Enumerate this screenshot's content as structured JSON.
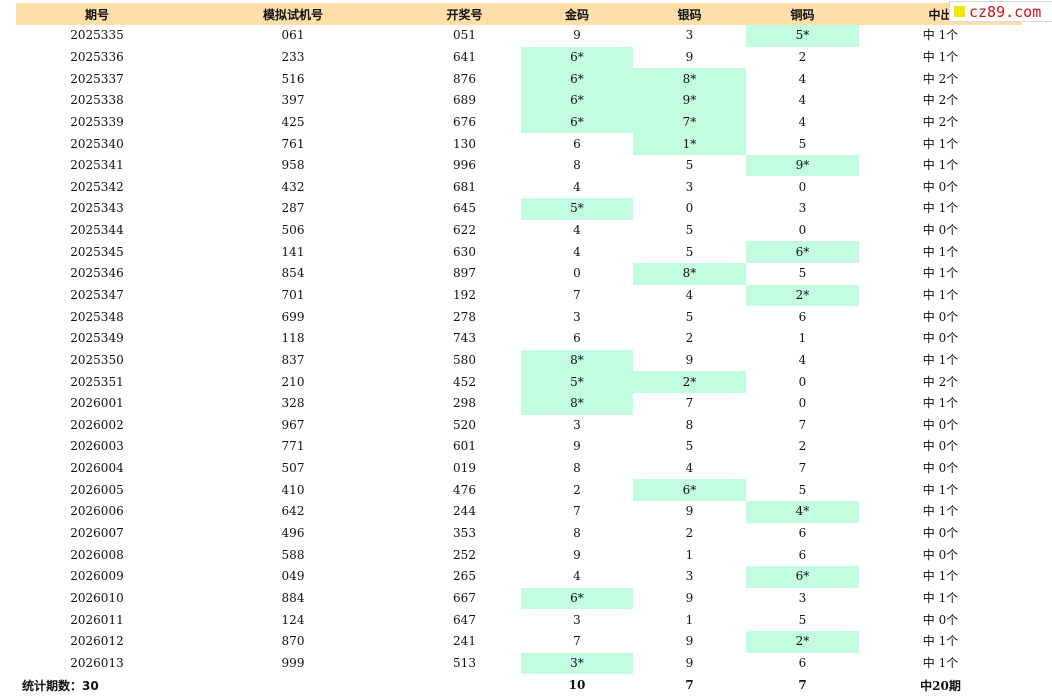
{
  "header": [
    "期号",
    "模拟试机号",
    "开奖号",
    "金码",
    "银码",
    "铜码",
    "中出"
  ],
  "logo": {
    "text": "cz89.com",
    "color": "#d0101a",
    "square_color": "#f4e800"
  },
  "colors": {
    "header_bg": "#fde0a9",
    "hit_bg": "#c2fde2"
  },
  "rows": [
    {
      "period": "2025335",
      "sim": "061",
      "draw": "051",
      "gold": "9",
      "silver": "3",
      "bronze": "5*",
      "hit": "中 1个",
      "hit_cols": [
        "bronze"
      ]
    },
    {
      "period": "2025336",
      "sim": "233",
      "draw": "641",
      "gold": "6*",
      "silver": "9",
      "bronze": "2",
      "hit": "中 1个",
      "hit_cols": [
        "gold"
      ]
    },
    {
      "period": "2025337",
      "sim": "516",
      "draw": "876",
      "gold": "6*",
      "silver": "8*",
      "bronze": "4",
      "hit": "中 2个",
      "hit_cols": [
        "gold",
        "silver"
      ]
    },
    {
      "period": "2025338",
      "sim": "397",
      "draw": "689",
      "gold": "6*",
      "silver": "9*",
      "bronze": "4",
      "hit": "中 2个",
      "hit_cols": [
        "gold",
        "silver"
      ]
    },
    {
      "period": "2025339",
      "sim": "425",
      "draw": "676",
      "gold": "6*",
      "silver": "7*",
      "bronze": "4",
      "hit": "中 2个",
      "hit_cols": [
        "gold",
        "silver"
      ]
    },
    {
      "period": "2025340",
      "sim": "761",
      "draw": "130",
      "gold": "6",
      "silver": "1*",
      "bronze": "5",
      "hit": "中 1个",
      "hit_cols": [
        "silver"
      ]
    },
    {
      "period": "2025341",
      "sim": "958",
      "draw": "996",
      "gold": "8",
      "silver": "5",
      "bronze": "9*",
      "hit": "中 1个",
      "hit_cols": [
        "bronze"
      ]
    },
    {
      "period": "2025342",
      "sim": "432",
      "draw": "681",
      "gold": "4",
      "silver": "3",
      "bronze": "0",
      "hit": "中 0个",
      "hit_cols": []
    },
    {
      "period": "2025343",
      "sim": "287",
      "draw": "645",
      "gold": "5*",
      "silver": "0",
      "bronze": "3",
      "hit": "中 1个",
      "hit_cols": [
        "gold"
      ]
    },
    {
      "period": "2025344",
      "sim": "506",
      "draw": "622",
      "gold": "4",
      "silver": "5",
      "bronze": "0",
      "hit": "中 0个",
      "hit_cols": []
    },
    {
      "period": "2025345",
      "sim": "141",
      "draw": "630",
      "gold": "4",
      "silver": "5",
      "bronze": "6*",
      "hit": "中 1个",
      "hit_cols": [
        "bronze"
      ]
    },
    {
      "period": "2025346",
      "sim": "854",
      "draw": "897",
      "gold": "0",
      "silver": "8*",
      "bronze": "5",
      "hit": "中 1个",
      "hit_cols": [
        "silver"
      ]
    },
    {
      "period": "2025347",
      "sim": "701",
      "draw": "192",
      "gold": "7",
      "silver": "4",
      "bronze": "2*",
      "hit": "中 1个",
      "hit_cols": [
        "bronze"
      ]
    },
    {
      "period": "2025348",
      "sim": "699",
      "draw": "278",
      "gold": "3",
      "silver": "5",
      "bronze": "6",
      "hit": "中 0个",
      "hit_cols": []
    },
    {
      "period": "2025349",
      "sim": "118",
      "draw": "743",
      "gold": "6",
      "silver": "2",
      "bronze": "1",
      "hit": "中 0个",
      "hit_cols": []
    },
    {
      "period": "2025350",
      "sim": "837",
      "draw": "580",
      "gold": "8*",
      "silver": "9",
      "bronze": "4",
      "hit": "中 1个",
      "hit_cols": [
        "gold"
      ]
    },
    {
      "period": "2025351",
      "sim": "210",
      "draw": "452",
      "gold": "5*",
      "silver": "2*",
      "bronze": "0",
      "hit": "中 2个",
      "hit_cols": [
        "gold",
        "silver"
      ]
    },
    {
      "period": "2026001",
      "sim": "328",
      "draw": "298",
      "gold": "8*",
      "silver": "7",
      "bronze": "0",
      "hit": "中 1个",
      "hit_cols": [
        "gold"
      ]
    },
    {
      "period": "2026002",
      "sim": "967",
      "draw": "520",
      "gold": "3",
      "silver": "8",
      "bronze": "7",
      "hit": "中 0个",
      "hit_cols": []
    },
    {
      "period": "2026003",
      "sim": "771",
      "draw": "601",
      "gold": "9",
      "silver": "5",
      "bronze": "2",
      "hit": "中 0个",
      "hit_cols": []
    },
    {
      "period": "2026004",
      "sim": "507",
      "draw": "019",
      "gold": "8",
      "silver": "4",
      "bronze": "7",
      "hit": "中 0个",
      "hit_cols": []
    },
    {
      "period": "2026005",
      "sim": "410",
      "draw": "476",
      "gold": "2",
      "silver": "6*",
      "bronze": "5",
      "hit": "中 1个",
      "hit_cols": [
        "silver"
      ]
    },
    {
      "period": "2026006",
      "sim": "642",
      "draw": "244",
      "gold": "7",
      "silver": "9",
      "bronze": "4*",
      "hit": "中 1个",
      "hit_cols": [
        "bronze"
      ]
    },
    {
      "period": "2026007",
      "sim": "496",
      "draw": "353",
      "gold": "8",
      "silver": "2",
      "bronze": "6",
      "hit": "中 0个",
      "hit_cols": []
    },
    {
      "period": "2026008",
      "sim": "588",
      "draw": "252",
      "gold": "9",
      "silver": "1",
      "bronze": "6",
      "hit": "中 0个",
      "hit_cols": []
    },
    {
      "period": "2026009",
      "sim": "049",
      "draw": "265",
      "gold": "4",
      "silver": "3",
      "bronze": "6*",
      "hit": "中 1个",
      "hit_cols": [
        "bronze"
      ]
    },
    {
      "period": "2026010",
      "sim": "884",
      "draw": "667",
      "gold": "6*",
      "silver": "9",
      "bronze": "3",
      "hit": "中 1个",
      "hit_cols": [
        "gold"
      ]
    },
    {
      "period": "2026011",
      "sim": "124",
      "draw": "647",
      "gold": "3",
      "silver": "1",
      "bronze": "5",
      "hit": "中 0个",
      "hit_cols": []
    },
    {
      "period": "2026012",
      "sim": "870",
      "draw": "241",
      "gold": "7",
      "silver": "9",
      "bronze": "2*",
      "hit": "中 1个",
      "hit_cols": [
        "bronze"
      ]
    },
    {
      "period": "2026013",
      "sim": "999",
      "draw": "513",
      "gold": "3*",
      "silver": "9",
      "bronze": "6",
      "hit": "中 1个",
      "hit_cols": [
        "gold"
      ]
    }
  ],
  "footer": {
    "label": "统计期数：30",
    "gold_total": "10",
    "silver_total": "7",
    "bronze_total": "7",
    "hit_total": "中20期"
  }
}
